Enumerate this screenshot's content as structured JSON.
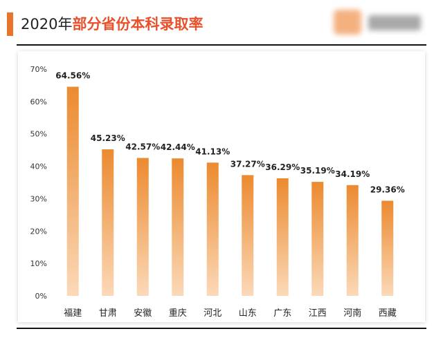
{
  "chart_data": {
    "type": "bar",
    "title": {
      "year": "2020年",
      "text": "部分省份本科录取率"
    },
    "categories": [
      "福建",
      "甘肃",
      "安徽",
      "重庆",
      "河北",
      "山东",
      "广东",
      "江西",
      "河南",
      "西藏"
    ],
    "values": [
      64.56,
      45.23,
      42.57,
      42.44,
      41.13,
      37.27,
      36.29,
      35.19,
      34.19,
      29.36
    ],
    "value_labels": [
      "64.56%",
      "45.23%",
      "42.57%",
      "42.44%",
      "41.13%",
      "37.27%",
      "36.29%",
      "35.19%",
      "34.19%",
      "29.36%"
    ],
    "y_ticks": [
      "0%",
      "10%",
      "20%",
      "30%",
      "40%",
      "50%",
      "60%",
      "70%"
    ],
    "ylim": [
      0,
      70
    ],
    "grid": false,
    "bar_color_top": "#ec8a2f",
    "bar_color_bottom": "#fbd9b8",
    "accent": "#e9742b",
    "title_color": "#e8512b"
  }
}
